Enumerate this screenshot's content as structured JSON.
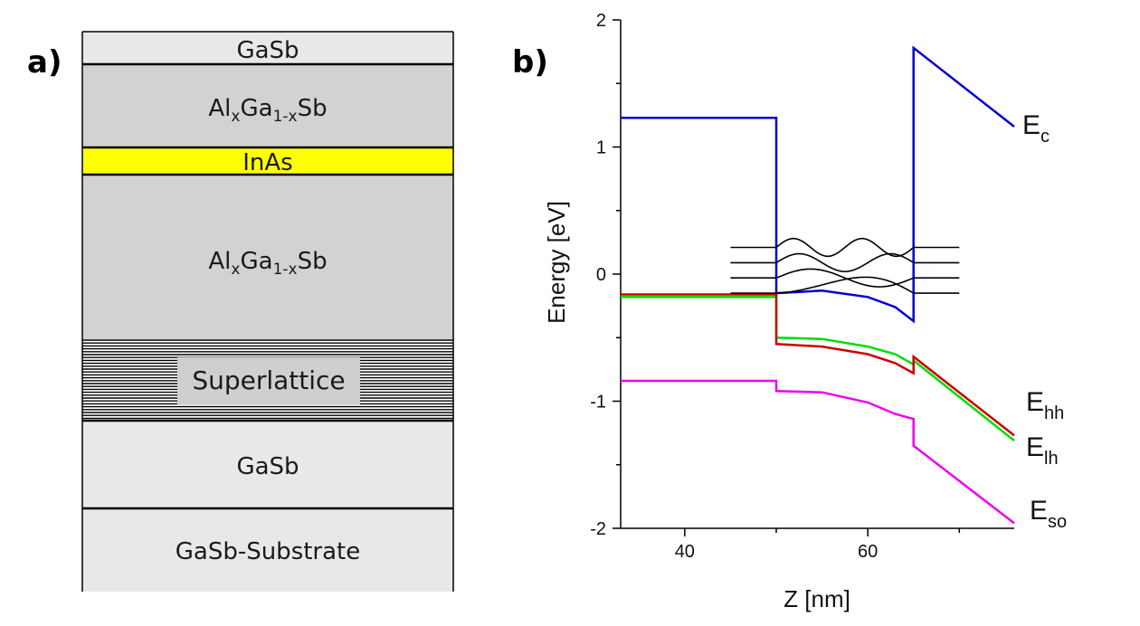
{
  "panel_a": {
    "label": "a)",
    "layers": [
      {
        "name": "GaSb",
        "fill": "#e8e8e8"
      },
      {
        "name": "AlxGa1-xSb",
        "fill": "#d2d2d2"
      },
      {
        "name": "InAs",
        "fill": "#ffff00"
      },
      {
        "name": "AlxGa1-xSb",
        "fill": "#d2d2d2"
      },
      {
        "name": "Superlattice",
        "fill": "#ffffff"
      },
      {
        "name": "GaSb",
        "fill": "#e8e8e8"
      },
      {
        "name": "GaSb-Substrate",
        "fill": "#e8e8e8"
      }
    ],
    "alloy_label": {
      "base1": "Al",
      "sub1": "x",
      "base2": "Ga",
      "sub2": "1-x",
      "base3": "Sb"
    },
    "superlattice_label_bg": "#cfcfcf"
  },
  "panel_b": {
    "label": "b)",
    "chart_data": {
      "type": "line",
      "xlabel": "Z [nm]",
      "ylabel": "Energy [eV]",
      "xlim": [
        33,
        76
      ],
      "ylim": [
        -2,
        2
      ],
      "xticks": [
        40,
        60
      ],
      "yticks": [
        2,
        1,
        0,
        -1,
        -2
      ],
      "series": [
        {
          "name": "Ec",
          "color": "#0000cc",
          "points": [
            [
              33,
              1.23
            ],
            [
              50,
              1.23
            ],
            [
              50,
              -0.15
            ],
            [
              55,
              -0.13
            ],
            [
              60,
              -0.18
            ],
            [
              63,
              -0.26
            ],
            [
              65,
              -0.37
            ],
            [
              65,
              1.78
            ],
            [
              76,
              1.16
            ]
          ]
        },
        {
          "name": "Ehh",
          "color": "#cc0000",
          "points": [
            [
              33,
              -0.16
            ],
            [
              50,
              -0.16
            ],
            [
              50,
              -0.55
            ],
            [
              55,
              -0.57
            ],
            [
              60,
              -0.63
            ],
            [
              63,
              -0.7
            ],
            [
              65,
              -0.78
            ],
            [
              65,
              -0.65
            ],
            [
              76,
              -1.27
            ]
          ]
        },
        {
          "name": "Elh",
          "color": "#00dd00",
          "points": [
            [
              33,
              -0.18
            ],
            [
              50,
              -0.18
            ],
            [
              50,
              -0.5
            ],
            [
              55,
              -0.51
            ],
            [
              60,
              -0.57
            ],
            [
              63,
              -0.63
            ],
            [
              65,
              -0.71
            ],
            [
              65,
              -0.68
            ],
            [
              76,
              -1.31
            ]
          ]
        },
        {
          "name": "Eso",
          "color": "#ee00ee",
          "points": [
            [
              33,
              -0.84
            ],
            [
              50,
              -0.84
            ],
            [
              50,
              -0.92
            ],
            [
              55,
              -0.93
            ],
            [
              60,
              -1.01
            ],
            [
              63,
              -1.1
            ],
            [
              65,
              -1.14
            ],
            [
              65,
              -1.35
            ],
            [
              76,
              -1.96
            ]
          ]
        }
      ],
      "wavefunctions": [
        {
          "energy": 0.21,
          "nodes": 3
        },
        {
          "energy": 0.09,
          "nodes": 2
        },
        {
          "energy": -0.03,
          "nodes": 1
        },
        {
          "energy": -0.15,
          "nodes": 0
        }
      ],
      "wavefunction_range": [
        45,
        70
      ],
      "legend": [
        {
          "main": "E",
          "sub": "c"
        },
        {
          "main": "E",
          "sub": "hh"
        },
        {
          "main": "E",
          "sub": "lh"
        },
        {
          "main": "E",
          "sub": "so"
        }
      ]
    }
  }
}
